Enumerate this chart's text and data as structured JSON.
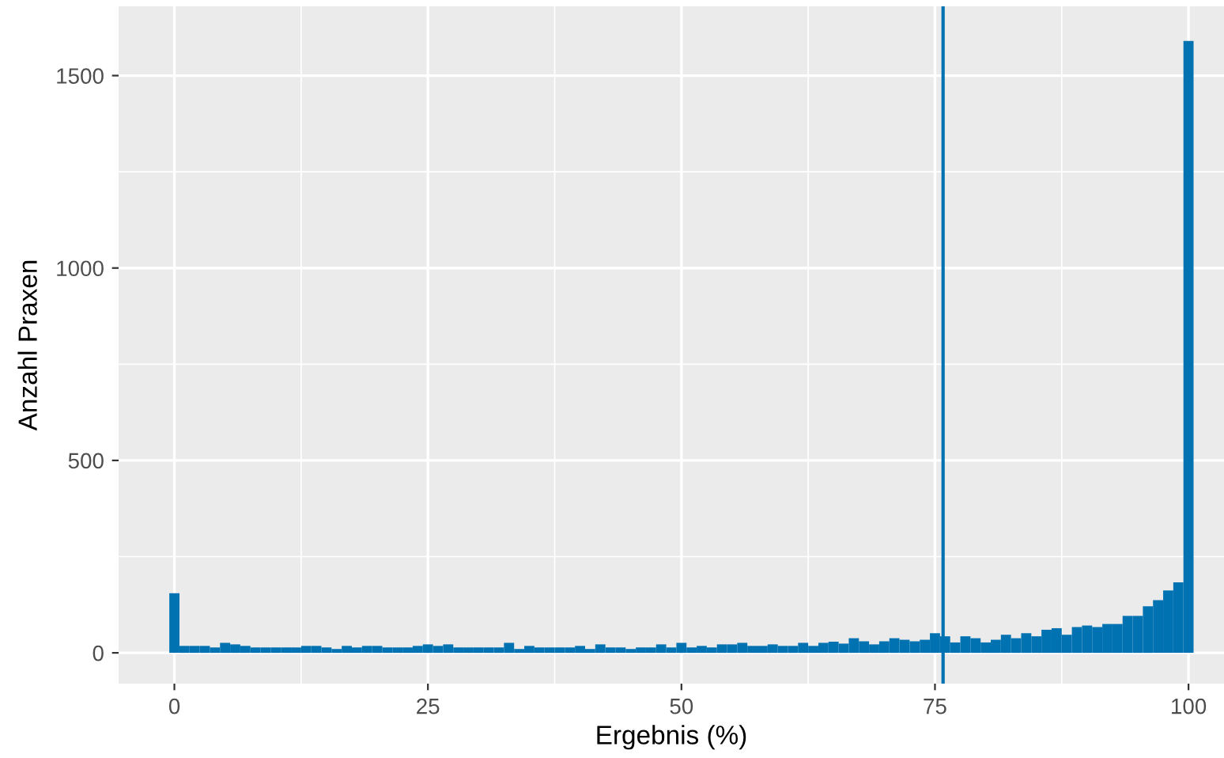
{
  "chart_data": {
    "type": "histogram",
    "xlabel": "Ergebnis (%)",
    "ylabel": "Anzahl Praxen",
    "color": "#0072b2",
    "bins": [
      -0.5,
      0.5,
      1.5,
      2.5,
      3.5,
      4.5,
      5.5,
      6.5,
      7.5,
      8.5,
      9.5,
      10.5,
      11.5,
      12.5,
      13.5,
      14.5,
      15.5,
      16.5,
      17.5,
      18.5,
      19.5,
      20.5,
      21.5,
      22.5,
      23.5,
      24.5,
      25.5,
      26.5,
      27.5,
      28.5,
      29.5,
      30.5,
      31.5,
      32.5,
      33.5,
      34.5,
      35.5,
      36.5,
      37.5,
      38.5,
      39.5,
      40.5,
      41.5,
      42.5,
      43.5,
      44.5,
      45.5,
      46.5,
      47.5,
      48.5,
      49.5,
      50.5,
      51.5,
      52.5,
      53.5,
      54.5,
      55.5,
      56.5,
      57.5,
      58.5,
      59.5,
      60.5,
      61.5,
      62.5,
      63.5,
      64.5,
      65.5,
      66.5,
      67.5,
      68.5,
      69.5,
      70.5,
      71.5,
      72.5,
      73.5,
      74.5,
      75.5,
      76.5,
      77.5,
      78.5,
      79.5,
      80.5,
      81.5,
      82.5,
      83.5,
      84.5,
      85.5,
      86.5,
      87.5,
      88.5,
      89.5,
      90.5,
      91.5,
      92.5,
      93.5,
      94.5,
      95.5,
      96.5,
      97.5,
      98.5,
      99.5,
      100.5
    ],
    "values": [
      155,
      18,
      18,
      18,
      14,
      26,
      22,
      18,
      14,
      14,
      14,
      14,
      14,
      18,
      18,
      14,
      10,
      18,
      14,
      18,
      18,
      14,
      14,
      14,
      18,
      22,
      18,
      22,
      14,
      14,
      14,
      14,
      14,
      26,
      10,
      18,
      14,
      14,
      14,
      14,
      18,
      10,
      22,
      14,
      14,
      10,
      14,
      14,
      22,
      14,
      26,
      14,
      18,
      14,
      22,
      22,
      26,
      18,
      18,
      22,
      18,
      18,
      26,
      18,
      26,
      29,
      24,
      38,
      30,
      22,
      30,
      38,
      34,
      30,
      34,
      51,
      43,
      27,
      43,
      38,
      27,
      34,
      47,
      38,
      51,
      43,
      60,
      64,
      47,
      67,
      71,
      67,
      75,
      75,
      96,
      96,
      121,
      137,
      162,
      183,
      1590
    ],
    "xlim": [
      -5.5,
      103.5
    ],
    "ylim": [
      -80,
      1680
    ],
    "xticks": [
      0,
      25,
      50,
      75,
      100
    ],
    "yticks": [
      0,
      500,
      1000,
      1500
    ],
    "grid": true,
    "ref_lines": [
      {
        "axis": "x",
        "value": 75.8,
        "color": "#0072b2"
      }
    ]
  }
}
